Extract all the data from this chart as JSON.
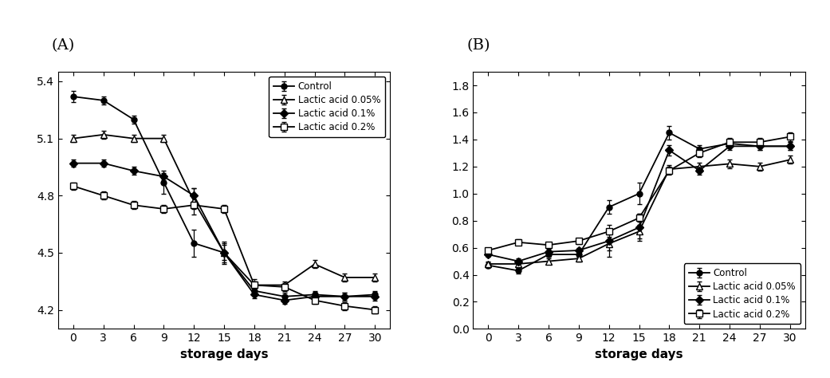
{
  "x_days": [
    0,
    3,
    6,
    9,
    12,
    15,
    18,
    21,
    24,
    27,
    30
  ],
  "pH": {
    "control": [
      5.32,
      5.3,
      5.2,
      4.87,
      4.55,
      4.5,
      4.3,
      4.27,
      4.28,
      4.27,
      4.28
    ],
    "lactic_005": [
      5.1,
      5.12,
      5.1,
      5.1,
      4.77,
      4.5,
      4.33,
      4.33,
      4.44,
      4.37,
      4.37
    ],
    "lactic_01": [
      4.97,
      4.97,
      4.93,
      4.9,
      4.8,
      4.5,
      4.28,
      4.25,
      4.27,
      4.27,
      4.27
    ],
    "lactic_02": [
      4.85,
      4.8,
      4.75,
      4.73,
      4.75,
      4.73,
      4.33,
      4.32,
      4.25,
      4.22,
      4.2
    ]
  },
  "pH_yerr": {
    "control": [
      0.03,
      0.02,
      0.02,
      0.06,
      0.07,
      0.05,
      0.02,
      0.02,
      0.02,
      0.02,
      0.02
    ],
    "lactic_005": [
      0.02,
      0.02,
      0.02,
      0.02,
      0.07,
      0.06,
      0.03,
      0.02,
      0.02,
      0.02,
      0.02
    ],
    "lactic_01": [
      0.02,
      0.02,
      0.02,
      0.02,
      0.04,
      0.04,
      0.02,
      0.02,
      0.02,
      0.02,
      0.02
    ],
    "lactic_02": [
      0.02,
      0.02,
      0.02,
      0.02,
      0.02,
      0.02,
      0.02,
      0.02,
      0.02,
      0.02,
      0.02
    ]
  },
  "acidity": {
    "control": [
      0.47,
      0.43,
      0.55,
      0.55,
      0.9,
      1.0,
      1.45,
      1.33,
      1.37,
      1.35,
      1.35
    ],
    "lactic_005": [
      0.48,
      0.48,
      0.5,
      0.52,
      0.63,
      0.72,
      1.18,
      1.2,
      1.22,
      1.2,
      1.25
    ],
    "lactic_01": [
      0.55,
      0.5,
      0.57,
      0.58,
      0.65,
      0.75,
      1.32,
      1.17,
      1.35,
      1.35,
      1.35
    ],
    "lactic_02": [
      0.58,
      0.64,
      0.62,
      0.65,
      0.72,
      0.82,
      1.17,
      1.3,
      1.38,
      1.38,
      1.42
    ]
  },
  "acidity_yerr": {
    "control": [
      0.02,
      0.02,
      0.02,
      0.02,
      0.05,
      0.08,
      0.05,
      0.03,
      0.03,
      0.03,
      0.03
    ],
    "lactic_005": [
      0.02,
      0.02,
      0.02,
      0.02,
      0.05,
      0.05,
      0.03,
      0.03,
      0.03,
      0.03,
      0.03
    ],
    "lactic_01": [
      0.02,
      0.02,
      0.02,
      0.02,
      0.12,
      0.1,
      0.04,
      0.03,
      0.03,
      0.03,
      0.03
    ],
    "lactic_02": [
      0.02,
      0.02,
      0.02,
      0.02,
      0.02,
      0.03,
      0.03,
      0.03,
      0.03,
      0.03,
      0.03
    ]
  },
  "pH_ylim": [
    4.1,
    5.45
  ],
  "pH_yticks": [
    4.2,
    4.5,
    4.8,
    5.1,
    5.4
  ],
  "acidity_ylim": [
    0.0,
    1.9
  ],
  "acidity_yticks": [
    0.0,
    0.2,
    0.4,
    0.6,
    0.8,
    1.0,
    1.2,
    1.4,
    1.6,
    1.8
  ],
  "xlabel": "storage days",
  "xticks": [
    0,
    3,
    6,
    9,
    12,
    15,
    18,
    21,
    24,
    27,
    30
  ],
  "legend_labels": [
    "Control",
    "Lactic acid 0.05%",
    "Lactic acid 0.1%",
    "Lactic acid 0.2%"
  ],
  "panel_labels": [
    "(A)",
    "(B)"
  ]
}
